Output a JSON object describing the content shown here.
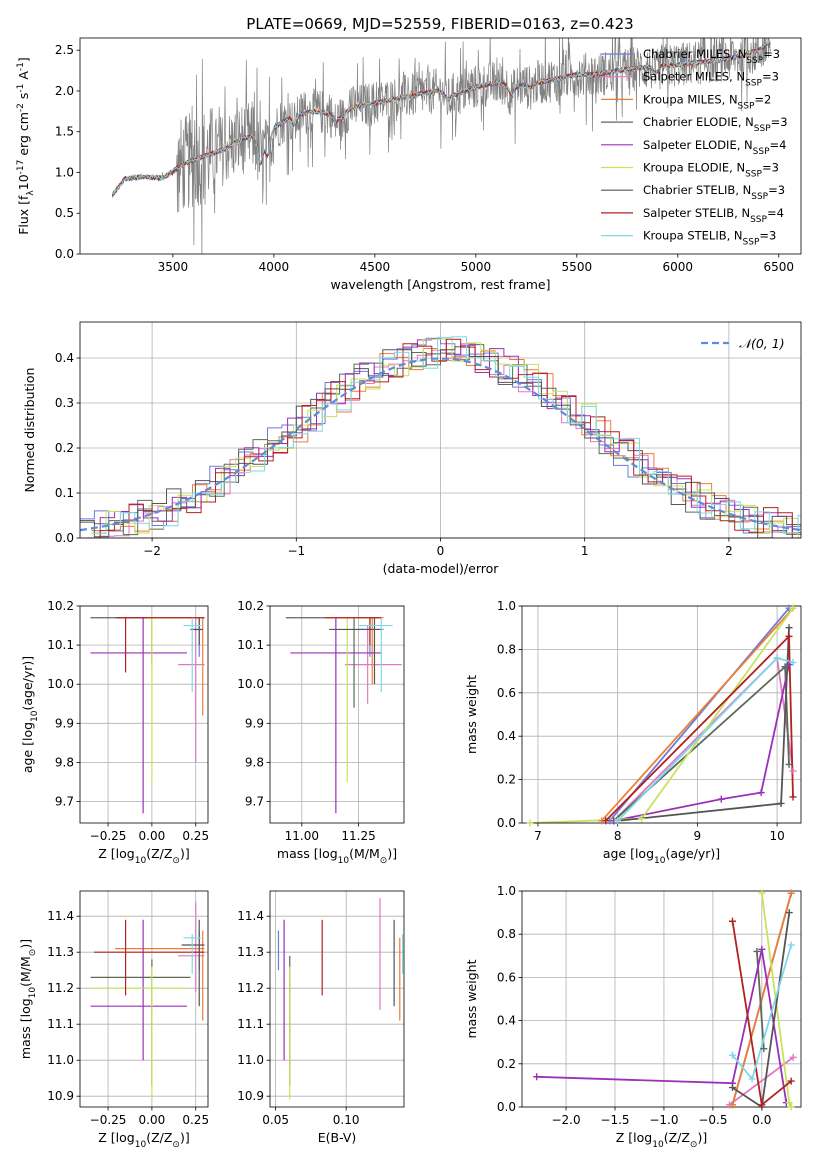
{
  "figure": {
    "title": "PLATE=0669, MJD=52559, FIBERID=0163, z=0.423"
  },
  "colors": {
    "Chabrier MILES": "#6b7bdc",
    "Salpeter MILES": "#e377c2",
    "Kroupa MILES": "#ee7d33",
    "Chabrier ELODIE": "#5a6b5a",
    "Salpeter ELODIE": "#9b30b8",
    "Kroupa ELODIE": "#c8e35a",
    "Chabrier STELIB": "#555555",
    "Salpeter STELIB": "#b22222",
    "Kroupa STELIB": "#7fd8e8",
    "data": "#808080",
    "normal": "#5b8dd9"
  },
  "chart_data": [
    {
      "id": "spectrum",
      "type": "line",
      "title": "PLATE=0669, MJD=52559, FIBERID=0163, z=0.423",
      "xlabel": "wavelength [Angstrom, rest frame]",
      "ylabel": "Flux [f$_\\lambda$10$^{-17}$ erg cm$^{-2}$ s$^{-1}$ A$^{-1}$]",
      "xlim": [
        3040,
        6610
      ],
      "ylim": [
        0,
        2.65
      ],
      "xticks": [
        3500,
        4000,
        4500,
        5000,
        5500,
        6000,
        6500
      ],
      "yticks": [
        0.0,
        0.5,
        1.0,
        1.5,
        2.0,
        2.5
      ],
      "legend_position": "upper right",
      "grid": false,
      "legend": [
        {
          "name": "Chabrier MILES",
          "nssp": 3
        },
        {
          "name": "Salpeter MILES",
          "nssp": 3
        },
        {
          "name": "Kroupa MILES",
          "nssp": 2
        },
        {
          "name": "Chabrier ELODIE",
          "nssp": 3
        },
        {
          "name": "Salpeter ELODIE",
          "nssp": 4
        },
        {
          "name": "Kroupa ELODIE",
          "nssp": 3
        },
        {
          "name": "Chabrier STELIB",
          "nssp": 3
        },
        {
          "name": "Salpeter STELIB",
          "nssp": 4
        },
        {
          "name": "Kroupa STELIB",
          "nssp": 3
        }
      ],
      "continuum": [
        [
          3200,
          0.72
        ],
        [
          3260,
          0.92
        ],
        [
          3350,
          0.95
        ],
        [
          3450,
          0.93
        ],
        [
          3550,
          1.1
        ],
        [
          3650,
          1.2
        ],
        [
          3750,
          1.28
        ],
        [
          3850,
          1.42
        ],
        [
          3920,
          1.45
        ],
        [
          4000,
          1.55
        ],
        [
          4100,
          1.7
        ],
        [
          4200,
          1.75
        ],
        [
          4300,
          1.72
        ],
        [
          4400,
          1.8
        ],
        [
          4500,
          1.85
        ],
        [
          4600,
          1.9
        ],
        [
          4700,
          1.95
        ],
        [
          4800,
          2.0
        ],
        [
          4900,
          1.95
        ],
        [
          5000,
          2.05
        ],
        [
          5100,
          2.1
        ],
        [
          5200,
          2.05
        ],
        [
          5300,
          2.1
        ],
        [
          5400,
          2.15
        ],
        [
          5500,
          2.2
        ],
        [
          5600,
          2.2
        ],
        [
          5700,
          2.25
        ],
        [
          5800,
          2.28
        ],
        [
          5900,
          2.3
        ],
        [
          6000,
          2.32
        ],
        [
          6100,
          2.35
        ],
        [
          6200,
          2.38
        ],
        [
          6300,
          2.42
        ],
        [
          6400,
          2.5
        ],
        [
          6460,
          2.6
        ]
      ]
    },
    {
      "id": "residuals",
      "type": "line",
      "xlabel": "(data-model)/error",
      "ylabel": "Normed distribution",
      "xlim": [
        -2.5,
        2.5
      ],
      "ylim": [
        0,
        0.48
      ],
      "xticks": [
        -2,
        -1,
        0,
        1,
        2
      ],
      "yticks": [
        0.0,
        0.1,
        0.2,
        0.3,
        0.4
      ],
      "grid": true,
      "legend_position": "upper right",
      "legend": [
        "𝒩(0, 1)"
      ],
      "normal_mean": 0,
      "normal_sigma": 1
    },
    {
      "id": "age_vs_Z",
      "type": "scatter",
      "xlabel": "Z [log$_{10}$(Z/Z$_\\odot$)]",
      "ylabel": "age  [log$_{10}$(age/yr)]",
      "xlim": [
        -0.41,
        0.32
      ],
      "ylim": [
        9.645,
        10.2
      ],
      "xticks": [
        -0.25,
        0.0,
        0.25
      ],
      "yticks": [
        9.7,
        9.8,
        9.9,
        10.0,
        10.1,
        10.2
      ],
      "grid": true,
      "points": [
        {
          "model": "Chabrier MILES",
          "x": 0.27,
          "y": 10.14,
          "xerr": [
            0.05,
            0.02
          ],
          "yerr": [
            0.07,
            0.03
          ]
        },
        {
          "model": "Salpeter MILES",
          "x": 0.25,
          "y": 10.05,
          "xerr": [
            0.1,
            0.05
          ],
          "yerr": [
            0.25,
            0.12
          ]
        },
        {
          "model": "Kroupa MILES",
          "x": 0.29,
          "y": 10.17,
          "xerr": [
            0.5,
            0.01
          ],
          "yerr": [
            0.25,
            0.0
          ]
        },
        {
          "model": "Chabrier ELODIE",
          "x": 0.0,
          "y": 10.17,
          "xerr": [
            0.35,
            0.22
          ],
          "yerr": [
            0.12,
            0.0
          ]
        },
        {
          "model": "Salpeter ELODIE",
          "x": -0.05,
          "y": 10.08,
          "xerr": [
            0.3,
            0.25
          ],
          "yerr": [
            0.41,
            0.09
          ]
        },
        {
          "model": "Kroupa ELODIE",
          "x": 0.0,
          "y": 10.17,
          "xerr": [
            0.02,
            0.21
          ],
          "yerr": [
            0.42,
            0.0
          ]
        },
        {
          "model": "Chabrier STELIB",
          "x": 0.27,
          "y": 10.14,
          "xerr": [
            0.05,
            0.02
          ],
          "yerr": [
            0.04,
            0.03
          ]
        },
        {
          "model": "Salpeter STELIB",
          "x": -0.15,
          "y": 10.17,
          "xerr": [
            0.05,
            0.45
          ],
          "yerr": [
            0.14,
            0.0
          ]
        },
        {
          "model": "Kroupa STELIB",
          "x": 0.23,
          "y": 10.15,
          "xerr": [
            0.05,
            0.05
          ],
          "yerr": [
            0.17,
            0.02
          ]
        }
      ]
    },
    {
      "id": "age_vs_mass",
      "type": "scatter",
      "xlabel": "mass [log$_{10}$(M/M$_\\odot$)]",
      "ylabel": "",
      "xlim": [
        10.86,
        11.45
      ],
      "ylim": [
        9.645,
        10.2
      ],
      "xticks": [
        11.0,
        11.25
      ],
      "yticks": [
        9.7,
        9.8,
        9.9,
        10.0,
        10.1,
        10.2
      ],
      "grid": true,
      "points": [
        {
          "model": "Chabrier MILES",
          "x": 11.3,
          "y": 10.14,
          "xerr": [
            0.05,
            0.06
          ],
          "yerr": [
            0.07,
            0.03
          ]
        },
        {
          "model": "Salpeter MILES",
          "x": 11.29,
          "y": 10.05,
          "xerr": [
            0.1,
            0.15
          ],
          "yerr": [
            0.1,
            0.1
          ]
        },
        {
          "model": "Kroupa MILES",
          "x": 11.31,
          "y": 10.17,
          "xerr": [
            0.2,
            0.05
          ],
          "yerr": [
            0.17,
            0.0
          ]
        },
        {
          "model": "Chabrier ELODIE",
          "x": 11.23,
          "y": 10.17,
          "xerr": [
            0.3,
            0.05
          ],
          "yerr": [
            0.23,
            0.0
          ]
        },
        {
          "model": "Salpeter ELODIE",
          "x": 11.15,
          "y": 10.08,
          "xerr": [
            0.2,
            0.2
          ],
          "yerr": [
            0.41,
            0.09
          ]
        },
        {
          "model": "Kroupa ELODIE",
          "x": 11.2,
          "y": 10.17,
          "xerr": [
            0.1,
            0.1
          ],
          "yerr": [
            0.42,
            0.0
          ]
        },
        {
          "model": "Chabrier STELIB",
          "x": 11.32,
          "y": 10.14,
          "xerr": [
            0.2,
            0.03
          ],
          "yerr": [
            0.14,
            0.03
          ]
        },
        {
          "model": "Salpeter STELIB",
          "x": 11.3,
          "y": 10.17,
          "xerr": [
            0.2,
            0.05
          ],
          "yerr": [
            0.07,
            0.0
          ]
        },
        {
          "model": "Kroupa STELIB",
          "x": 11.35,
          "y": 10.15,
          "xerr": [
            0.1,
            0.05
          ],
          "yerr": [
            0.17,
            0.02
          ]
        }
      ]
    },
    {
      "id": "weight_vs_age",
      "type": "line",
      "xlabel": "age  [log$_{10}$(age/yr)]",
      "ylabel": "mass weight",
      "xlim": [
        6.8,
        10.3
      ],
      "ylim": [
        0,
        1.0
      ],
      "xticks": [
        7,
        8,
        9,
        10
      ],
      "yticks": [
        0.0,
        0.2,
        0.4,
        0.6,
        0.8,
        1.0
      ],
      "grid": true,
      "series": [
        {
          "model": "Chabrier MILES",
          "x": [
            7.9,
            10.15
          ],
          "y": [
            0.01,
            0.99
          ]
        },
        {
          "model": "Salpeter MILES",
          "x": [
            7.95,
            10.0,
            10.2
          ],
          "y": [
            0.01,
            0.76,
            0.24
          ]
        },
        {
          "model": "Kroupa MILES",
          "x": [
            7.8,
            10.2
          ],
          "y": [
            0.01,
            0.99
          ]
        },
        {
          "model": "Chabrier ELODIE",
          "x": [
            7.95,
            10.1,
            10.15
          ],
          "y": [
            0.01,
            0.72,
            0.27
          ]
        },
        {
          "model": "Salpeter ELODIE",
          "x": [
            7.95,
            9.3,
            9.8,
            10.15
          ],
          "y": [
            0.01,
            0.11,
            0.14,
            0.73
          ]
        },
        {
          "model": "Kroupa ELODIE",
          "x": [
            6.9,
            8.3,
            10.2
          ],
          "y": [
            0.0,
            0.02,
            0.99
          ]
        },
        {
          "model": "Chabrier STELIB",
          "x": [
            8.0,
            10.05,
            10.15
          ],
          "y": [
            0.01,
            0.09,
            0.9
          ]
        },
        {
          "model": "Salpeter STELIB",
          "x": [
            7.85,
            10.15,
            10.2
          ],
          "y": [
            0.01,
            0.86,
            0.12
          ]
        },
        {
          "model": "Kroupa STELIB",
          "x": [
            8.0,
            10.0,
            10.2
          ],
          "y": [
            0.01,
            0.76,
            0.74
          ]
        }
      ]
    },
    {
      "id": "mass_vs_Z",
      "type": "scatter",
      "xlabel": "Z [log$_{10}$(Z/Z$_\\odot$)]",
      "ylabel": "mass [log$_{10}$(M/M$_\\odot$)]",
      "xlim": [
        -0.41,
        0.32
      ],
      "ylim": [
        10.87,
        11.47
      ],
      "xticks": [
        -0.25,
        0.0,
        0.25
      ],
      "yticks": [
        10.9,
        11.0,
        11.1,
        11.2,
        11.3,
        11.4
      ],
      "grid": true,
      "points": [
        {
          "model": "Chabrier MILES",
          "x": 0.27,
          "y": 11.3,
          "xerr": [
            0.05,
            0.02
          ],
          "yerr": [
            0.05,
            0.06
          ]
        },
        {
          "model": "Salpeter MILES",
          "x": 0.25,
          "y": 11.29,
          "xerr": [
            0.1,
            0.05
          ],
          "yerr": [
            0.1,
            0.15
          ]
        },
        {
          "model": "Kroupa MILES",
          "x": 0.29,
          "y": 11.31,
          "xerr": [
            0.5,
            0.01
          ],
          "yerr": [
            0.2,
            0.05
          ]
        },
        {
          "model": "Chabrier ELODIE",
          "x": 0.0,
          "y": 11.23,
          "xerr": [
            0.35,
            0.22
          ],
          "yerr": [
            0.3,
            0.05
          ]
        },
        {
          "model": "Salpeter ELODIE",
          "x": -0.05,
          "y": 11.15,
          "xerr": [
            0.3,
            0.25
          ],
          "yerr": [
            0.15,
            0.24
          ]
        },
        {
          "model": "Kroupa ELODIE",
          "x": 0.0,
          "y": 11.2,
          "xerr": [
            0.35,
            0.21
          ],
          "yerr": [
            0.31,
            0.06
          ]
        },
        {
          "model": "Chabrier STELIB",
          "x": 0.27,
          "y": 11.32,
          "xerr": [
            0.1,
            0.03
          ],
          "yerr": [
            0.17,
            0.07
          ]
        },
        {
          "model": "Salpeter STELIB",
          "x": -0.15,
          "y": 11.3,
          "xerr": [
            0.18,
            0.45
          ],
          "yerr": [
            0.12,
            0.09
          ]
        },
        {
          "model": "Kroupa STELIB",
          "x": 0.23,
          "y": 11.34,
          "xerr": [
            0.05,
            0.05
          ],
          "yerr": [
            0.1,
            0.01
          ]
        }
      ]
    },
    {
      "id": "mass_vs_EBV",
      "type": "scatter",
      "xlabel": "E(B-V)",
      "ylabel": "",
      "xlim": [
        0.046,
        0.141
      ],
      "ylim": [
        10.87,
        11.47
      ],
      "xticks": [
        0.05,
        0.1
      ],
      "yticks": [
        10.9,
        11.0,
        11.1,
        11.2,
        11.3,
        11.4
      ],
      "grid": true,
      "points": [
        {
          "model": "Chabrier MILES",
          "x": 0.052,
          "y": 11.3,
          "yerr": [
            0.05,
            0.06
          ]
        },
        {
          "model": "Salpeter MILES",
          "x": 0.124,
          "y": 11.29,
          "yerr": [
            0.15,
            0.16
          ]
        },
        {
          "model": "Kroupa MILES",
          "x": 0.138,
          "y": 11.31,
          "yerr": [
            0.2,
            0.03
          ]
        },
        {
          "model": "Chabrier ELODIE",
          "x": 0.06,
          "y": 11.23,
          "yerr": [
            0.3,
            0.06
          ]
        },
        {
          "model": "Salpeter ELODIE",
          "x": 0.056,
          "y": 11.15,
          "yerr": [
            0.15,
            0.24
          ]
        },
        {
          "model": "Kroupa ELODIE",
          "x": 0.06,
          "y": 11.2,
          "yerr": [
            0.31,
            0.06
          ]
        },
        {
          "model": "Chabrier STELIB",
          "x": 0.134,
          "y": 11.32,
          "yerr": [
            0.17,
            0.07
          ]
        },
        {
          "model": "Salpeter STELIB",
          "x": 0.083,
          "y": 11.3,
          "yerr": [
            0.12,
            0.09
          ]
        },
        {
          "model": "Kroupa STELIB",
          "x": 0.14,
          "y": 11.34,
          "yerr": [
            0.1,
            0.01
          ]
        }
      ]
    },
    {
      "id": "weight_vs_Z",
      "type": "line",
      "xlabel": "Z [log$_{10}$(Z/Z$_\\odot$)]",
      "ylabel": "mass weight",
      "xlim": [
        -2.45,
        0.4
      ],
      "ylim": [
        0,
        1.0
      ],
      "xticks": [
        -2.0,
        -1.5,
        -1.0,
        -0.5,
        0.0
      ],
      "yticks": [
        0.0,
        0.2,
        0.4,
        0.6,
        0.8,
        1.0
      ],
      "grid": true,
      "series": [
        {
          "model": "Chabrier MILES",
          "x": [
            -0.3,
            0.3
          ],
          "y": [
            0.01,
            0.99
          ]
        },
        {
          "model": "Salpeter MILES",
          "x": [
            -0.33,
            0.32
          ],
          "y": [
            0.01,
            0.23
          ]
        },
        {
          "model": "Kroupa MILES",
          "x": [
            -0.3,
            0.3
          ],
          "y": [
            0.01,
            0.99
          ]
        },
        {
          "model": "Chabrier ELODIE",
          "x": [
            -0.05,
            0.02
          ],
          "y": [
            0.72,
            0.27
          ]
        },
        {
          "model": "Salpeter ELODIE",
          "x": [
            -2.3,
            -0.3,
            0.0,
            0.25
          ],
          "y": [
            0.14,
            0.11,
            0.73,
            0.02
          ]
        },
        {
          "model": "Kroupa ELODIE",
          "x": [
            0.0,
            0.28,
            0.3
          ],
          "y": [
            0.99,
            0.02,
            0.0
          ]
        },
        {
          "model": "Chabrier STELIB",
          "x": [
            -0.3,
            0.0,
            0.28
          ],
          "y": [
            0.09,
            0.0,
            0.9
          ]
        },
        {
          "model": "Salpeter STELIB",
          "x": [
            -0.3,
            0.0,
            0.3
          ],
          "y": [
            0.86,
            0.01,
            0.12
          ]
        },
        {
          "model": "Kroupa STELIB",
          "x": [
            -0.3,
            -0.1,
            0.3
          ],
          "y": [
            0.24,
            0.13,
            0.75
          ]
        }
      ]
    }
  ]
}
